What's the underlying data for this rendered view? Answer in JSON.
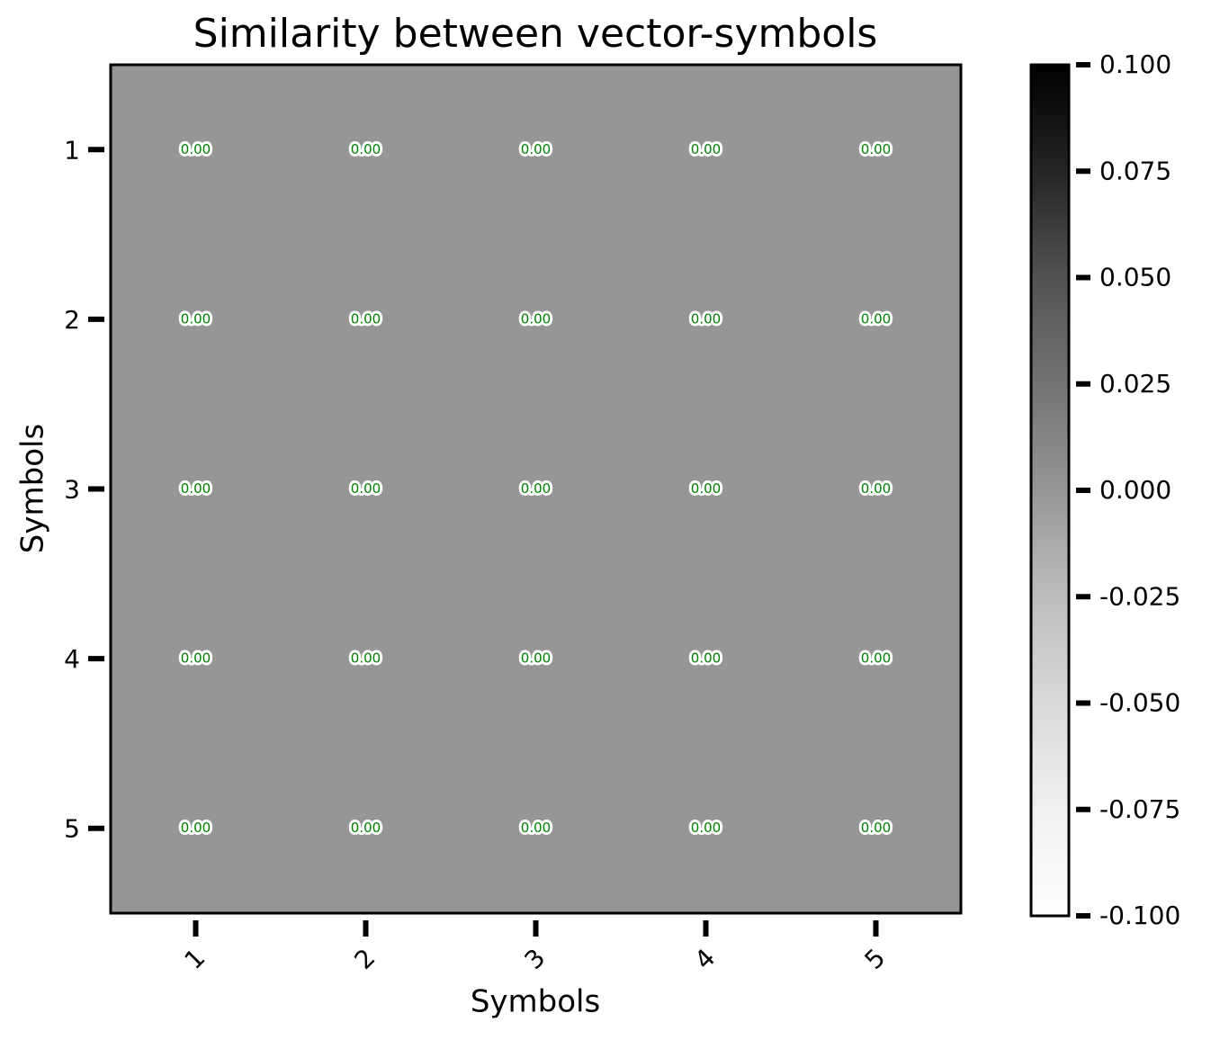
{
  "chart_data": {
    "type": "heatmap",
    "title": "Similarity between vector-symbols",
    "xlabel": "Symbols",
    "ylabel": "Symbols",
    "x_categories": [
      "1",
      "2",
      "3",
      "4",
      "5"
    ],
    "y_categories": [
      "1",
      "2",
      "3",
      "4",
      "5"
    ],
    "values": [
      [
        0,
        0,
        0,
        0,
        0
      ],
      [
        0,
        0,
        0,
        0,
        0
      ],
      [
        0,
        0,
        0,
        0,
        0
      ],
      [
        0,
        0,
        0,
        0,
        0
      ],
      [
        0,
        0,
        0,
        0,
        0
      ]
    ],
    "value_labels": [
      [
        "0.00",
        "0.00",
        "0.00",
        "0.00",
        "0.00"
      ],
      [
        "0.00",
        "0.00",
        "0.00",
        "0.00",
        "0.00"
      ],
      [
        "0.00",
        "0.00",
        "0.00",
        "0.00",
        "0.00"
      ],
      [
        "0.00",
        "0.00",
        "0.00",
        "0.00",
        "0.00"
      ],
      [
        "0.00",
        "0.00",
        "0.00",
        "0.00",
        "0.00"
      ]
    ],
    "value_label_color": "#008000",
    "colormap": [
      "#ffffff",
      "#f0f0f0",
      "#d9d9d9",
      "#bdbdbd",
      "#969696",
      "#737373",
      "#525252",
      "#252525",
      "#000000"
    ],
    "colorbar": {
      "lim": [
        -0.1,
        0.1
      ],
      "ticks": [
        {
          "value": 0.1,
          "label": "0.100"
        },
        {
          "value": 0.075,
          "label": "0.075"
        },
        {
          "value": 0.05,
          "label": "0.050"
        },
        {
          "value": 0.025,
          "label": "0.025"
        },
        {
          "value": 0,
          "label": "0.000"
        },
        {
          "value": -0.025,
          "label": "-0.025"
        },
        {
          "value": -0.05,
          "label": "-0.050"
        },
        {
          "value": -0.075,
          "label": "-0.075"
        },
        {
          "value": -0.1,
          "label": "-0.100"
        }
      ]
    }
  }
}
